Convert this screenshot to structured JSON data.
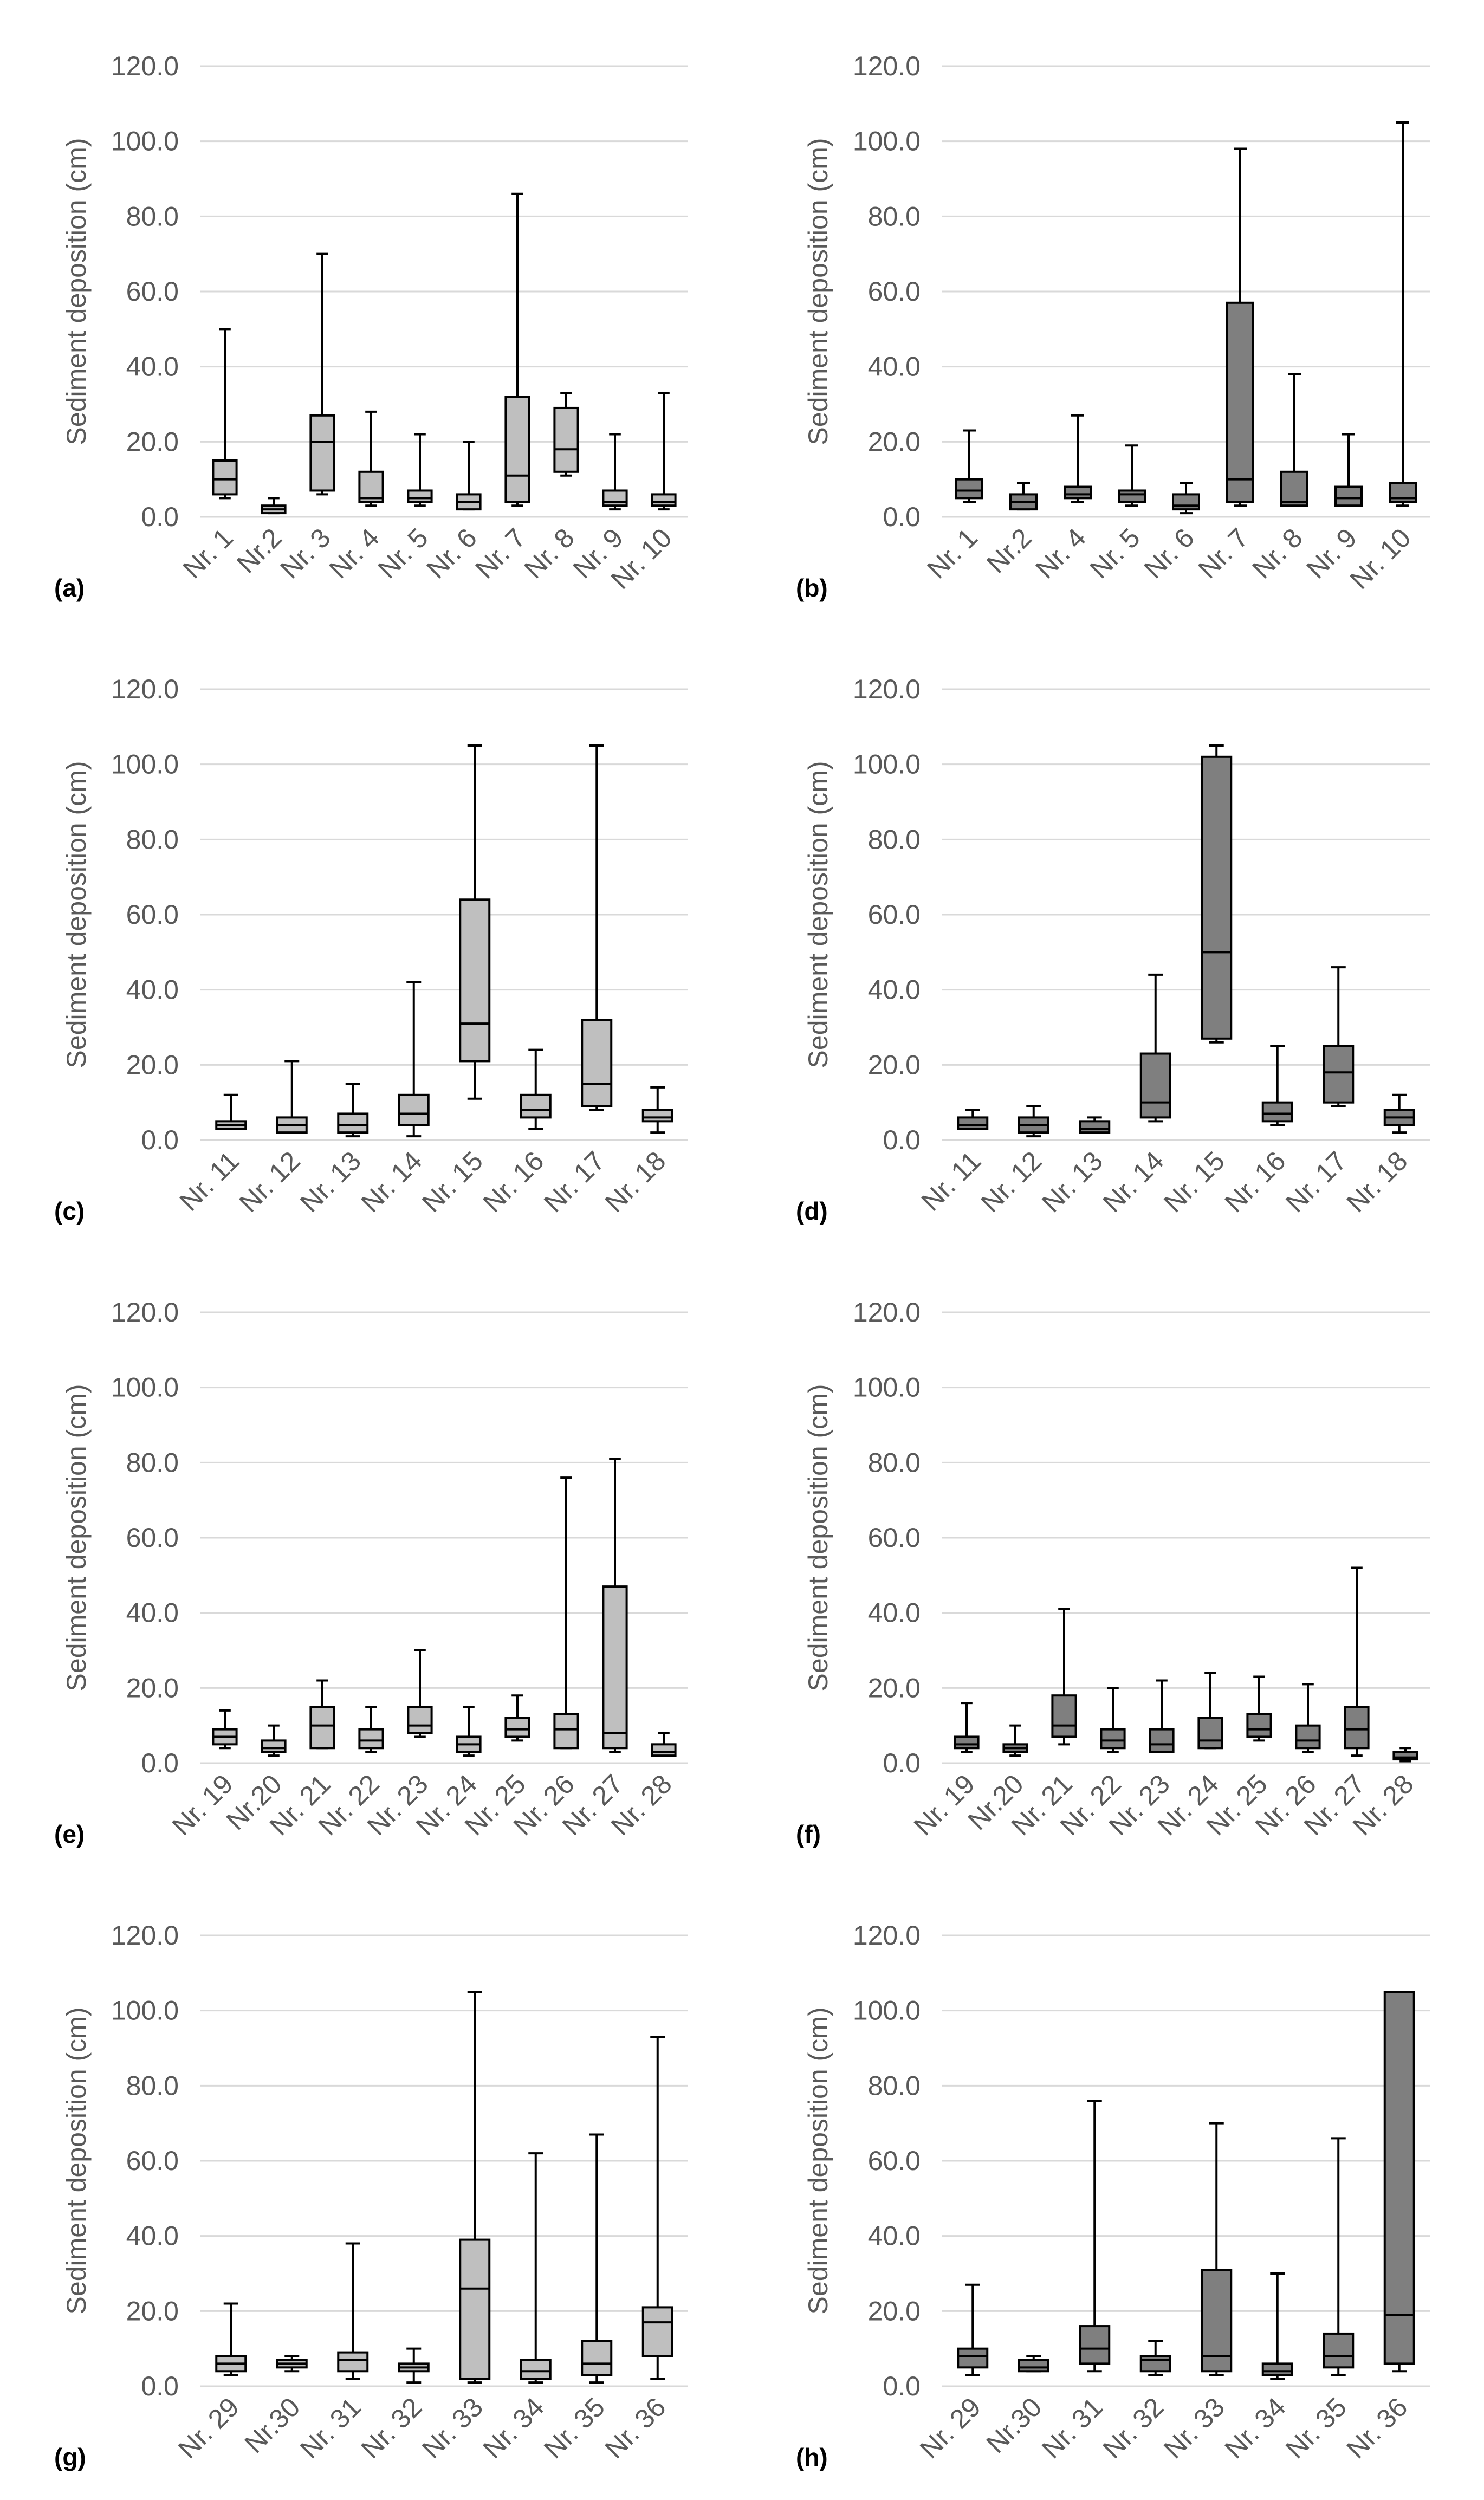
{
  "figure": {
    "background": "#ffffff",
    "grid_color": "#d9d9d9",
    "stroke_color": "#000000",
    "text_color": "#595959"
  },
  "chart_data": [
    {
      "panel": "(a)",
      "type": "box",
      "ylabel": "Sediment deposition (cm)",
      "ylim": [
        0,
        120
      ],
      "yticks": [
        "0.0",
        "20.0",
        "40.0",
        "60.0",
        "80.0",
        "100.0",
        "120.0"
      ],
      "box_color": "#bfbfbf",
      "categories": [
        "Nr. 1",
        "Nr.2",
        "Nr. 3",
        "Nr. 4",
        "Nr. 5",
        "Nr. 6",
        "Nr. 7",
        "Nr. 8",
        "Nr. 9",
        "Nr. 10"
      ],
      "boxes": [
        {
          "min": 5,
          "q1": 6,
          "median": 10,
          "q3": 15,
          "max": 50
        },
        {
          "min": 1,
          "q1": 1,
          "median": 2,
          "q3": 3,
          "max": 5
        },
        {
          "min": 6,
          "q1": 7,
          "median": 20,
          "q3": 27,
          "max": 70
        },
        {
          "min": 3,
          "q1": 4,
          "median": 5,
          "q3": 12,
          "max": 28
        },
        {
          "min": 3,
          "q1": 4,
          "median": 5,
          "q3": 7,
          "max": 22
        },
        {
          "min": 2,
          "q1": 2,
          "median": 4,
          "q3": 6,
          "max": 20
        },
        {
          "min": 3,
          "q1": 4,
          "median": 11,
          "q3": 32,
          "max": 86
        },
        {
          "min": 11,
          "q1": 12,
          "median": 18,
          "q3": 29,
          "max": 33
        },
        {
          "min": 2,
          "q1": 3,
          "median": 4,
          "q3": 7,
          "max": 22
        },
        {
          "min": 2,
          "q1": 3,
          "median": 4,
          "q3": 6,
          "max": 33
        }
      ]
    },
    {
      "panel": "(b)",
      "type": "box",
      "ylabel": "Sediment deposition (cm)",
      "ylim": [
        0,
        120
      ],
      "yticks": [
        "0.0",
        "20.0",
        "40.0",
        "60.0",
        "80.0",
        "100.0",
        "120.0"
      ],
      "box_color": "#7f7f7f",
      "categories": [
        "Nr. 1",
        "Nr.2",
        "Nr. 4",
        "Nr. 5",
        "Nr. 6",
        "Nr. 7",
        "Nr. 8",
        "Nr. 9",
        "Nr. 10"
      ],
      "boxes": [
        {
          "min": 4,
          "q1": 5,
          "median": 7,
          "q3": 10,
          "max": 23
        },
        {
          "min": 2,
          "q1": 2,
          "median": 4,
          "q3": 6,
          "max": 9
        },
        {
          "min": 4,
          "q1": 5,
          "median": 6,
          "q3": 8,
          "max": 27
        },
        {
          "min": 3,
          "q1": 4,
          "median": 6,
          "q3": 7,
          "max": 19
        },
        {
          "min": 1,
          "q1": 2,
          "median": 3,
          "q3": 6,
          "max": 9
        },
        {
          "min": 3,
          "q1": 4,
          "median": 10,
          "q3": 57,
          "max": 98
        },
        {
          "min": 3,
          "q1": 3,
          "median": 4,
          "q3": 12,
          "max": 38
        },
        {
          "min": 3,
          "q1": 3,
          "median": 5,
          "q3": 8,
          "max": 22
        },
        {
          "min": 3,
          "q1": 4,
          "median": 5,
          "q3": 9,
          "max": 105
        }
      ]
    },
    {
      "panel": "(c)",
      "type": "box",
      "ylabel": "Sediment deposition (cm)",
      "ylim": [
        0,
        120
      ],
      "yticks": [
        "0.0",
        "20.0",
        "40.0",
        "60.0",
        "80.0",
        "100.0",
        "120.0"
      ],
      "box_color": "#bfbfbf",
      "categories": [
        "Nr. 11",
        "Nr. 12",
        "Nr. 13",
        "Nr. 14",
        "Nr. 15",
        "Nr. 16",
        "Nr. 17",
        "Nr. 18"
      ],
      "boxes": [
        {
          "min": 3,
          "q1": 3,
          "median": 4,
          "q3": 5,
          "max": 12
        },
        {
          "min": 2,
          "q1": 2,
          "median": 4,
          "q3": 6,
          "max": 21
        },
        {
          "min": 1,
          "q1": 2,
          "median": 4,
          "q3": 7,
          "max": 15
        },
        {
          "min": 1,
          "q1": 4,
          "median": 7,
          "q3": 12,
          "max": 42
        },
        {
          "min": 11,
          "q1": 21,
          "median": 31,
          "q3": 64,
          "max": 105
        },
        {
          "min": 3,
          "q1": 6,
          "median": 8,
          "q3": 12,
          "max": 24
        },
        {
          "min": 8,
          "q1": 9,
          "median": 15,
          "q3": 32,
          "max": 105
        },
        {
          "min": 2,
          "q1": 5,
          "median": 6,
          "q3": 8,
          "max": 14
        }
      ]
    },
    {
      "panel": "(d)",
      "type": "box",
      "ylabel": "Sediment deposition (cm)",
      "ylim": [
        0,
        120
      ],
      "yticks": [
        "0.0",
        "20.0",
        "40.0",
        "60.0",
        "80.0",
        "100.0",
        "120.0"
      ],
      "box_color": "#7f7f7f",
      "categories": [
        "Nr. 11",
        "Nr. 12",
        "Nr. 13",
        "Nr. 14",
        "Nr. 15",
        "Nr. 16",
        "Nr. 17",
        "Nr. 18"
      ],
      "boxes": [
        {
          "min": 3,
          "q1": 3,
          "median": 4,
          "q3": 6,
          "max": 8
        },
        {
          "min": 1,
          "q1": 2,
          "median": 4,
          "q3": 6,
          "max": 9
        },
        {
          "min": 2,
          "q1": 2,
          "median": 3,
          "q3": 5,
          "max": 6
        },
        {
          "min": 5,
          "q1": 6,
          "median": 10,
          "q3": 23,
          "max": 44
        },
        {
          "min": 26,
          "q1": 27,
          "median": 50,
          "q3": 102,
          "max": 105
        },
        {
          "min": 4,
          "q1": 5,
          "median": 7,
          "q3": 10,
          "max": 25
        },
        {
          "min": 9,
          "q1": 10,
          "median": 18,
          "q3": 25,
          "max": 46
        },
        {
          "min": 2,
          "q1": 4,
          "median": 6,
          "q3": 8,
          "max": 12
        }
      ]
    },
    {
      "panel": "(e)",
      "type": "box",
      "ylabel": "Sediment deposition (cm)",
      "ylim": [
        0,
        120
      ],
      "yticks": [
        "0.0",
        "20.0",
        "40.0",
        "60.0",
        "80.0",
        "100.0",
        "120.0"
      ],
      "box_color": "#bfbfbf",
      "categories": [
        "Nr. 19",
        "Nr.20",
        "Nr. 21",
        "Nr. 22",
        "Nr. 23",
        "Nr. 24",
        "Nr. 25",
        "Nr. 26",
        "Nr. 27",
        "Nr. 28"
      ],
      "boxes": [
        {
          "min": 4,
          "q1": 5,
          "median": 7,
          "q3": 9,
          "max": 14
        },
        {
          "min": 2,
          "q1": 3,
          "median": 4,
          "q3": 6,
          "max": 10
        },
        {
          "min": 4,
          "q1": 4,
          "median": 10,
          "q3": 15,
          "max": 22
        },
        {
          "min": 3,
          "q1": 4,
          "median": 6,
          "q3": 9,
          "max": 15
        },
        {
          "min": 7,
          "q1": 8,
          "median": 10,
          "q3": 15,
          "max": 30
        },
        {
          "min": 2,
          "q1": 3,
          "median": 5,
          "q3": 7,
          "max": 15
        },
        {
          "min": 6,
          "q1": 7,
          "median": 9,
          "q3": 12,
          "max": 18
        },
        {
          "min": 4,
          "q1": 4,
          "median": 9,
          "q3": 13,
          "max": 76
        },
        {
          "min": 3,
          "q1": 4,
          "median": 8,
          "q3": 47,
          "max": 81
        },
        {
          "min": 2,
          "q1": 2,
          "median": 3,
          "q3": 5,
          "max": 8
        }
      ]
    },
    {
      "panel": "(f)",
      "type": "box",
      "ylabel": "Sediment deposition (cm)",
      "ylim": [
        0,
        120
      ],
      "yticks": [
        "0.0",
        "20.0",
        "40.0",
        "60.0",
        "80.0",
        "100.0",
        "120.0"
      ],
      "box_color": "#7f7f7f",
      "categories": [
        "Nr. 19",
        "Nr.20",
        "Nr. 21",
        "Nr. 22",
        "Nr. 23",
        "Nr. 24",
        "Nr. 25",
        "Nr. 26",
        "Nr. 27",
        "Nr. 28"
      ],
      "boxes": [
        {
          "min": 3,
          "q1": 4,
          "median": 5,
          "q3": 7,
          "max": 16
        },
        {
          "min": 2,
          "q1": 3,
          "median": 4,
          "q3": 5,
          "max": 10
        },
        {
          "min": 5,
          "q1": 7,
          "median": 10,
          "q3": 18,
          "max": 41
        },
        {
          "min": 3,
          "q1": 4,
          "median": 6,
          "q3": 9,
          "max": 20
        },
        {
          "min": 3,
          "q1": 3,
          "median": 5,
          "q3": 9,
          "max": 22
        },
        {
          "min": 4,
          "q1": 4,
          "median": 6,
          "q3": 12,
          "max": 24
        },
        {
          "min": 6,
          "q1": 7,
          "median": 9,
          "q3": 13,
          "max": 23
        },
        {
          "min": 3,
          "q1": 4,
          "median": 6,
          "q3": 10,
          "max": 21
        },
        {
          "min": 2,
          "q1": 4,
          "median": 9,
          "q3": 15,
          "max": 52
        },
        {
          "min": 0.5,
          "q1": 1,
          "median": 1.5,
          "q3": 3,
          "max": 4
        }
      ]
    },
    {
      "panel": "(g)",
      "type": "box",
      "ylabel": "Sediment deposition (cm)",
      "ylim": [
        0,
        120
      ],
      "yticks": [
        "0.0",
        "20.0",
        "40.0",
        "60.0",
        "80.0",
        "100.0",
        "120.0"
      ],
      "box_color": "#bfbfbf",
      "categories": [
        "Nr. 29",
        "Nr.30",
        "Nr. 31",
        "Nr. 32",
        "Nr. 33",
        "Nr. 34",
        "Nr. 35",
        "Nr. 36"
      ],
      "boxes": [
        {
          "min": 3,
          "q1": 4,
          "median": 6,
          "q3": 8,
          "max": 22
        },
        {
          "min": 4,
          "q1": 5,
          "median": 6,
          "q3": 7,
          "max": 8
        },
        {
          "min": 2,
          "q1": 4,
          "median": 7,
          "q3": 9,
          "max": 38
        },
        {
          "min": 1,
          "q1": 4,
          "median": 5,
          "q3": 6,
          "max": 10
        },
        {
          "min": 1,
          "q1": 2,
          "median": 26,
          "q3": 39,
          "max": 105
        },
        {
          "min": 1,
          "q1": 2,
          "median": 4,
          "q3": 7,
          "max": 62
        },
        {
          "min": 1,
          "q1": 3,
          "median": 6,
          "q3": 12,
          "max": 67
        },
        {
          "min": 2,
          "q1": 8,
          "median": 17,
          "q3": 21,
          "max": 93
        }
      ]
    },
    {
      "panel": "(h)",
      "type": "box",
      "ylabel": "Sediment deposition (cm)",
      "ylim": [
        0,
        120
      ],
      "yticks": [
        "0.0",
        "20.0",
        "40.0",
        "60.0",
        "80.0",
        "100.0",
        "120.0"
      ],
      "box_color": "#7f7f7f",
      "categories": [
        "Nr. 29",
        "Nr.30",
        "Nr. 31",
        "Nr. 32",
        "Nr. 33",
        "Nr. 34",
        "Nr. 35",
        "Nr. 36"
      ],
      "boxes": [
        {
          "min": 3,
          "q1": 5,
          "median": 8,
          "q3": 10,
          "max": 27
        },
        {
          "min": 4,
          "q1": 4,
          "median": 5,
          "q3": 7,
          "max": 8
        },
        {
          "min": 4,
          "q1": 6,
          "median": 10,
          "q3": 16,
          "max": 76
        },
        {
          "min": 3,
          "q1": 4,
          "median": 7,
          "q3": 8,
          "max": 12
        },
        {
          "min": 3,
          "q1": 4,
          "median": 8,
          "q3": 31,
          "max": 70
        },
        {
          "min": 2,
          "q1": 3,
          "median": 4,
          "q3": 6,
          "max": 30
        },
        {
          "min": 3,
          "q1": 5,
          "median": 8,
          "q3": 14,
          "max": 66
        },
        {
          "min": 4,
          "q1": 6,
          "median": 19,
          "q3": 105,
          "max": 105
        }
      ]
    }
  ]
}
